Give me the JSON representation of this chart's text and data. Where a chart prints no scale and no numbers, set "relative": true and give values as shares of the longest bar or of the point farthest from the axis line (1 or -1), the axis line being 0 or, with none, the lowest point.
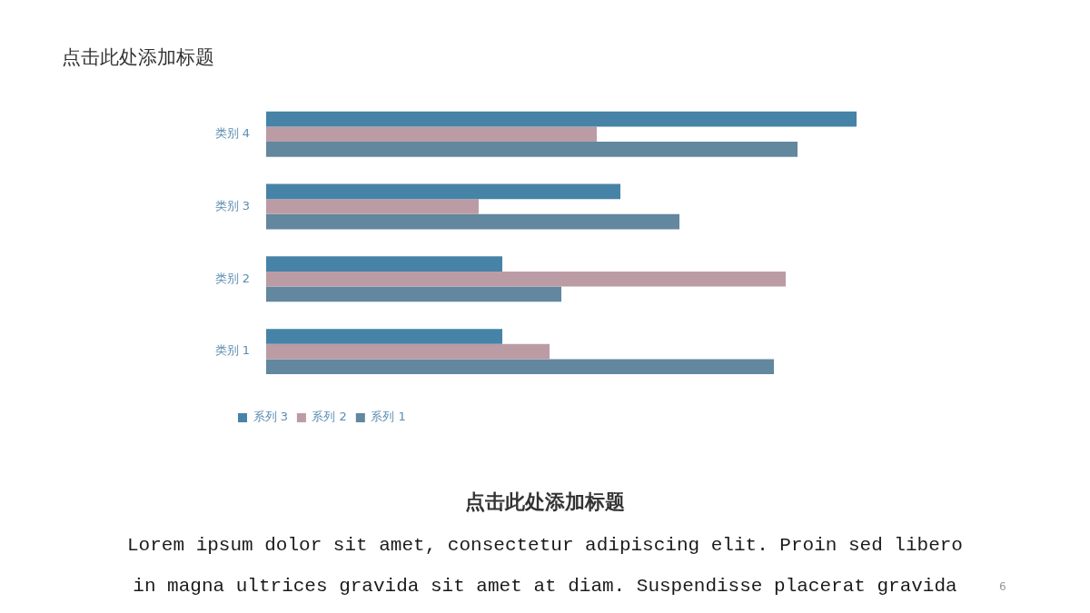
{
  "chart_data": {
    "type": "bar",
    "orientation": "horizontal",
    "relative": true,
    "title": "点击此处添加标题",
    "annotations": [
      "点击此处添加标题",
      "Lorem ipsum dolor sit amet, consectetur adipiscing elit. Proin sed libero in magna ultrices gravida sit amet at diam. Suspendisse placerat gravida",
      "6"
    ],
    "categories": [
      "类别 4",
      "类别 3",
      "类别 2",
      "类别 1"
    ],
    "series": [
      {
        "name": "系列 3",
        "color": "#4683a7",
        "values": [
          1,
          0.6,
          0.4,
          0.4
        ]
      },
      {
        "name": "系列 2",
        "color": "#bb9ca4",
        "values": [
          0.56,
          0.36,
          0.88,
          0.48
        ]
      },
      {
        "name": "系列 1",
        "color": "#62879f",
        "values": [
          0.9,
          0.7,
          0.5,
          0.86
        ]
      }
    ],
    "legend": "bottom left"
  }
}
